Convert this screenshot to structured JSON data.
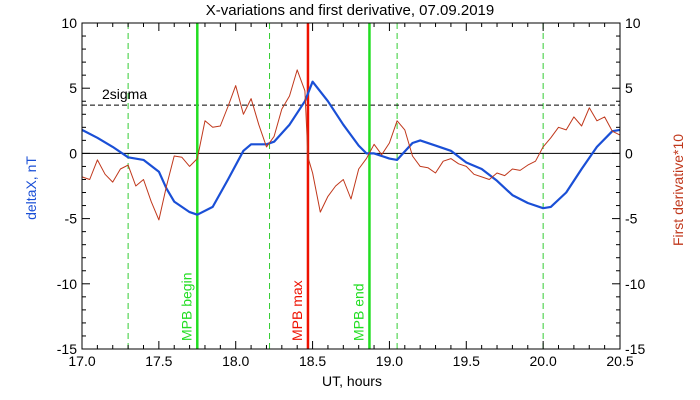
{
  "chart_data": {
    "type": "line",
    "title": "X-variations and first derivative, 07.09.2019",
    "xlabel": "UT, hours",
    "ylabel_left": "deltaX, nT",
    "ylabel_right": "First derivative*10",
    "xlim": [
      17.0,
      20.5
    ],
    "ylim": [
      -15,
      10
    ],
    "y2lim": [
      -15,
      10
    ],
    "x_ticks": [
      "17.0",
      "17.5",
      "18.0",
      "18.5",
      "19.0",
      "19.5",
      "20.0",
      "20.5"
    ],
    "x_tick_values": [
      17.0,
      17.5,
      18.0,
      18.5,
      19.0,
      19.5,
      20.0,
      20.5
    ],
    "y_ticks": [
      "10",
      "5",
      "0",
      "-5",
      "-10",
      "-15"
    ],
    "y_tick_values": [
      10,
      5,
      0,
      -5,
      -10,
      -15
    ],
    "y2_ticks": [
      "10",
      "5",
      "0",
      "-5",
      "-10",
      "-15"
    ],
    "sigma_label": "2sigma",
    "sigma_level": 3.7,
    "zero_level": 0,
    "series": [
      {
        "color": "#1a4fd6",
        "points": [
          [
            17.0,
            1.8
          ],
          [
            17.1,
            1.2
          ],
          [
            17.2,
            0.5
          ],
          [
            17.3,
            -0.3
          ],
          [
            17.4,
            -0.5
          ],
          [
            17.5,
            -1.4
          ],
          [
            17.55,
            -2.7
          ],
          [
            17.6,
            -3.7
          ],
          [
            17.7,
            -4.5
          ],
          [
            17.75,
            -4.7
          ],
          [
            17.85,
            -4.1
          ],
          [
            17.95,
            -2.0
          ],
          [
            18.05,
            0.2
          ],
          [
            18.1,
            0.7
          ],
          [
            18.2,
            0.7
          ],
          [
            18.25,
            0.9
          ],
          [
            18.35,
            2.2
          ],
          [
            18.45,
            4.0
          ],
          [
            18.5,
            5.5
          ],
          [
            18.6,
            4.0
          ],
          [
            18.7,
            2.2
          ],
          [
            18.8,
            0.6
          ],
          [
            18.85,
            0.0
          ],
          [
            18.9,
            0.0
          ],
          [
            19.0,
            -0.4
          ],
          [
            19.05,
            -0.5
          ],
          [
            19.15,
            0.8
          ],
          [
            19.2,
            1.0
          ],
          [
            19.3,
            0.6
          ],
          [
            19.4,
            0.2
          ],
          [
            19.5,
            -0.7
          ],
          [
            19.6,
            -1.2
          ],
          [
            19.7,
            -2.1
          ],
          [
            19.8,
            -3.2
          ],
          [
            19.9,
            -3.8
          ],
          [
            20.0,
            -4.2
          ],
          [
            20.05,
            -4.1
          ],
          [
            20.15,
            -3.0
          ],
          [
            20.25,
            -1.2
          ],
          [
            20.35,
            0.5
          ],
          [
            20.45,
            1.7
          ],
          [
            20.5,
            1.8
          ]
        ]
      },
      {
        "color": "#c0381c",
        "points": [
          [
            17.0,
            -1.8
          ],
          [
            17.05,
            -2.0
          ],
          [
            17.1,
            -0.5
          ],
          [
            17.15,
            -1.6
          ],
          [
            17.2,
            -2.2
          ],
          [
            17.25,
            -1.2
          ],
          [
            17.3,
            -0.9
          ],
          [
            17.35,
            -2.5
          ],
          [
            17.4,
            -2.0
          ],
          [
            17.45,
            -3.7
          ],
          [
            17.5,
            -5.1
          ],
          [
            17.55,
            -2.5
          ],
          [
            17.6,
            -0.2
          ],
          [
            17.65,
            -0.3
          ],
          [
            17.7,
            -1.0
          ],
          [
            17.75,
            -0.4
          ],
          [
            17.8,
            2.5
          ],
          [
            17.85,
            2.0
          ],
          [
            17.9,
            2.1
          ],
          [
            17.95,
            3.6
          ],
          [
            18.0,
            5.2
          ],
          [
            18.05,
            3.0
          ],
          [
            18.1,
            4.2
          ],
          [
            18.15,
            2.2
          ],
          [
            18.2,
            0.5
          ],
          [
            18.25,
            1.3
          ],
          [
            18.3,
            3.4
          ],
          [
            18.35,
            4.4
          ],
          [
            18.4,
            6.4
          ],
          [
            18.45,
            4.8
          ],
          [
            18.47,
            -0.3
          ],
          [
            18.5,
            -1.5
          ],
          [
            18.55,
            -4.5
          ],
          [
            18.6,
            -3.3
          ],
          [
            18.65,
            -2.5
          ],
          [
            18.7,
            -2.0
          ],
          [
            18.75,
            -3.5
          ],
          [
            18.8,
            -1.2
          ],
          [
            18.85,
            -0.4
          ],
          [
            18.9,
            0.7
          ],
          [
            18.95,
            -0.1
          ],
          [
            19.0,
            0.8
          ],
          [
            19.05,
            2.5
          ],
          [
            19.1,
            1.8
          ],
          [
            19.15,
            -0.2
          ],
          [
            19.2,
            -1.0
          ],
          [
            19.25,
            -1.1
          ],
          [
            19.3,
            -1.5
          ],
          [
            19.35,
            -0.6
          ],
          [
            19.4,
            -0.4
          ],
          [
            19.45,
            -0.8
          ],
          [
            19.5,
            -1.0
          ],
          [
            19.55,
            -1.6
          ],
          [
            19.6,
            -1.8
          ],
          [
            19.65,
            -2.0
          ],
          [
            19.7,
            -1.5
          ],
          [
            19.75,
            -1.7
          ],
          [
            19.8,
            -1.2
          ],
          [
            19.85,
            -1.3
          ],
          [
            19.9,
            -0.9
          ],
          [
            19.95,
            -0.6
          ],
          [
            20.0,
            0.5
          ],
          [
            20.05,
            1.2
          ],
          [
            20.1,
            2.0
          ],
          [
            20.15,
            1.8
          ],
          [
            20.2,
            2.8
          ],
          [
            20.25,
            2.1
          ],
          [
            20.3,
            3.5
          ],
          [
            20.35,
            2.5
          ],
          [
            20.4,
            2.8
          ],
          [
            20.45,
            1.7
          ],
          [
            20.5,
            1.4
          ]
        ]
      }
    ],
    "vlines_dashed": [
      17.3,
      18.22,
      19.05,
      20.0
    ],
    "markers": [
      {
        "x": 17.75,
        "label": "MPB begin",
        "color": "#22dd22"
      },
      {
        "x": 18.47,
        "label": "MPB max",
        "color": "#ee1100"
      },
      {
        "x": 18.87,
        "label": "MPB end",
        "color": "#22dd22"
      }
    ],
    "colors": {
      "deltaX": "#1a4fd6",
      "derivative": "#c0381c",
      "dashed_vlines": "#33cc33"
    }
  }
}
